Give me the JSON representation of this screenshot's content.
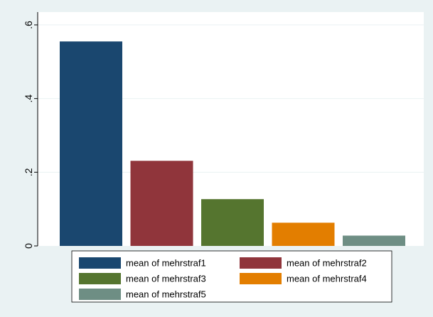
{
  "chart_data": {
    "type": "bar",
    "title": "",
    "xlabel": "",
    "ylabel": "",
    "ylim": [
      0,
      0.6
    ],
    "yticks": [
      {
        "value": 0,
        "label": "0"
      },
      {
        "value": 0.2,
        "label": ".2"
      },
      {
        "value": 0.4,
        "label": ".4"
      },
      {
        "value": 0.6,
        "label": ".6"
      }
    ],
    "grid": true,
    "legend_position": "bottom",
    "series": [
      {
        "name": "mean of mehrstraf1",
        "value": 0.555,
        "color": "#1a476f"
      },
      {
        "name": "mean of mehrstraf2",
        "value": 0.231,
        "color": "#90353b"
      },
      {
        "name": "mean of mehrstraf3",
        "value": 0.127,
        "color": "#55752f"
      },
      {
        "name": "mean of mehrstraf4",
        "value": 0.063,
        "color": "#e37e00"
      },
      {
        "name": "mean of mehrstraf5",
        "value": 0.028,
        "color": "#6e8e84"
      }
    ]
  }
}
